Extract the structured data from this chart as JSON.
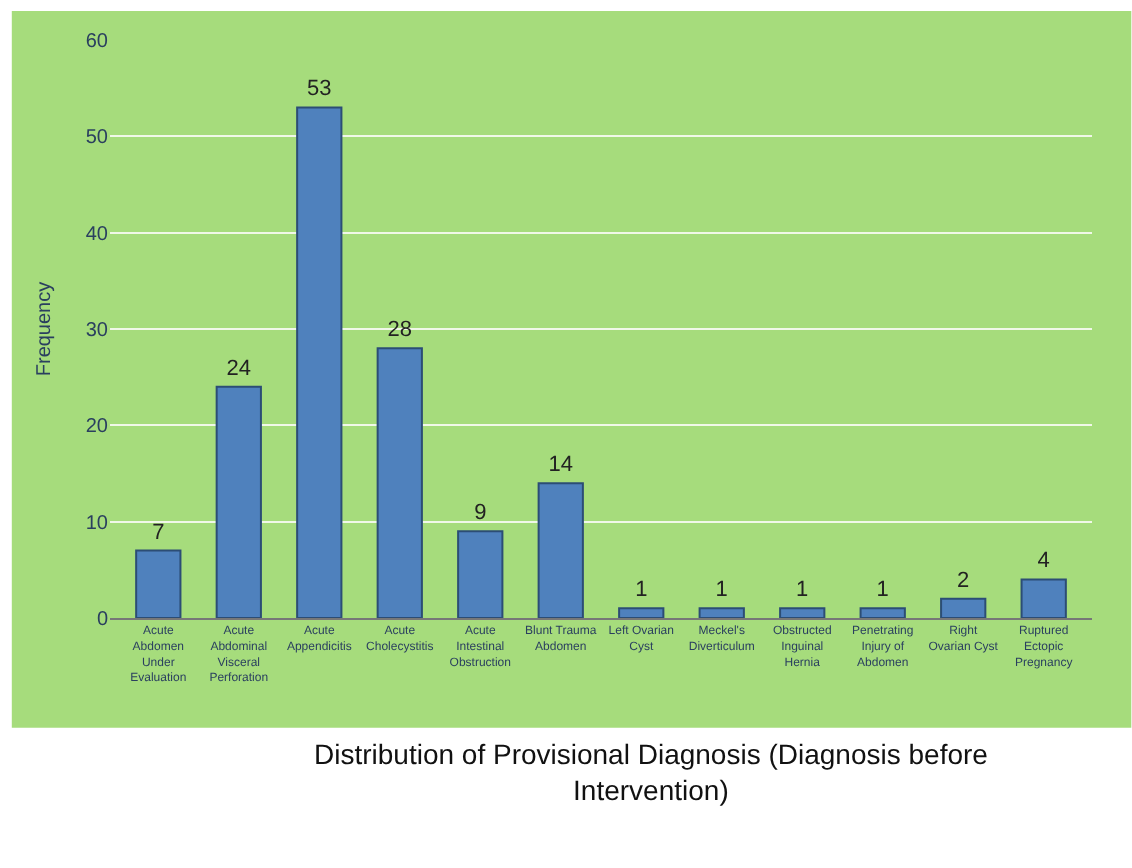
{
  "chart_data": {
    "type": "bar",
    "title": "Distribution of Provisional Diagnosis (Diagnosis before Intervention)",
    "ylabel": "Frequency",
    "categories": [
      "Acute Abdomen Under Evaluation",
      "Acute Abdominal Visceral Perforation",
      "Acute Appendicitis",
      "Acute Cholecystitis",
      "Acute Intestinal Obstruction",
      "Blunt Trauma Abdomen",
      "Left Ovarian Cyst",
      "Meckel's Diverticulum",
      "Obstructed Inguinal Hernia",
      "Penetrating Injury of Abdomen",
      "Right Ovarian Cyst",
      "Ruptured Ectopic Pregnancy"
    ],
    "values": [
      7,
      24,
      53,
      28,
      9,
      14,
      1,
      1,
      1,
      1,
      2,
      4
    ],
    "color": "#4f81bd",
    "ylim": [
      0,
      60
    ],
    "yticks": [
      0,
      10,
      20,
      30,
      40,
      50,
      60
    ],
    "grid": "y",
    "data_labels": true
  }
}
